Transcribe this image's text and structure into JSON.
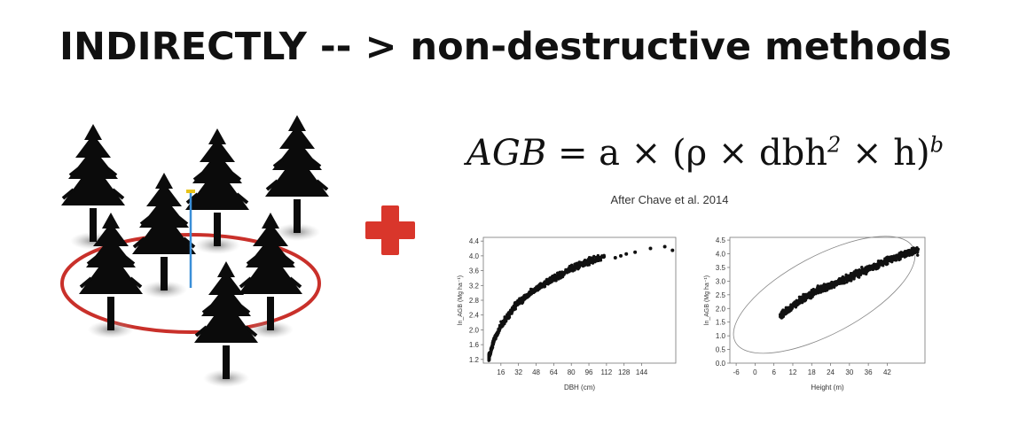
{
  "header": {
    "title": "INDIRECTLY  -- > non-destructive methods"
  },
  "formula": {
    "lhs": "AGB",
    "rhs_start": "= a × (ρ × dbh",
    "exp2": "2",
    "rhs_mid": " × h)",
    "expb": "b"
  },
  "citation": "After Chave et al. 2014",
  "colors": {
    "plus": "#d9362b",
    "plot_ring": "#c9302a",
    "pole": "#3a8fd8",
    "tree": "#0b0b0b"
  },
  "icons": {
    "plus": "plus-icon",
    "trees": "tree-plot-illustration"
  },
  "chart_data": [
    {
      "type": "scatter",
      "title": "",
      "xlabel": "DBH (cm)",
      "ylabel": "ln_AGB (Mg ha⁻¹)",
      "xlim": [
        0,
        175
      ],
      "ylim": [
        1.1,
        4.5
      ],
      "xticks": [
        16,
        32,
        48,
        64,
        80,
        96,
        112,
        128,
        144
      ],
      "yticks": [
        1.2,
        1.6,
        2.0,
        2.4,
        2.8,
        3.2,
        3.6,
        4.0,
        4.4
      ],
      "grid": false,
      "curve": {
        "description": "logarithmic saturating trend",
        "points_x": [
          5,
          10,
          16,
          24,
          32,
          48,
          64,
          80,
          96,
          112,
          144,
          170
        ],
        "points_y": [
          1.25,
          1.75,
          2.1,
          2.45,
          2.75,
          3.1,
          3.4,
          3.65,
          3.85,
          3.98,
          4.15,
          4.25
        ]
      },
      "points": [
        [
          120,
          3.95
        ],
        [
          125,
          4.0
        ],
        [
          130,
          4.05
        ],
        [
          138,
          4.1
        ],
        [
          152,
          4.2
        ],
        [
          165,
          4.25
        ],
        [
          172,
          4.15
        ],
        [
          100,
          3.9
        ],
        [
          92,
          3.75
        ],
        [
          85,
          3.7
        ]
      ]
    },
    {
      "type": "scatter",
      "title": "",
      "xlabel": "Height (m)",
      "ylabel": "ln_AGB (Mg ha⁻¹)",
      "xlim": [
        -8,
        54
      ],
      "ylim": [
        0.0,
        4.6
      ],
      "xticks": [
        -6,
        0,
        6,
        12,
        18,
        24,
        30,
        36,
        42
      ],
      "yticks": [
        0.0,
        0.5,
        1.0,
        1.5,
        2.0,
        2.5,
        3.0,
        3.5,
        4.0,
        4.5
      ],
      "grid": false,
      "curve": {
        "description": "linear trend with confidence ellipse",
        "points_x": [
          8,
          12,
          18,
          24,
          30,
          36,
          42,
          50
        ],
        "points_y": [
          1.7,
          2.1,
          2.55,
          2.85,
          3.15,
          3.45,
          3.75,
          4.1
        ]
      },
      "ellipse": {
        "center": [
          22,
          2.5
        ],
        "rx": 32,
        "ry": 0.65,
        "angle_deg": -28
      }
    }
  ]
}
